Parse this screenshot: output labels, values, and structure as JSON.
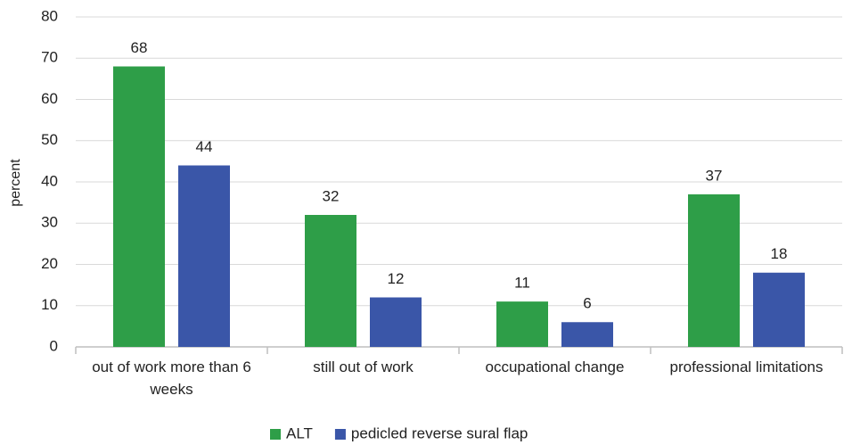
{
  "chart_data": {
    "type": "bar",
    "categories": [
      "out of work more than 6 weeks",
      "still out of work",
      "occupational change",
      "professional limitations"
    ],
    "series": [
      {
        "name": "ALT",
        "color": "#2e9e48",
        "values": [
          68,
          32,
          11,
          37
        ]
      },
      {
        "name": "pedicled reverse sural flap",
        "color": "#3a56a8",
        "values": [
          44,
          12,
          6,
          18
        ]
      }
    ],
    "y_label": "percent",
    "ylim": [
      0,
      80
    ],
    "yticks": [
      0,
      10,
      20,
      30,
      40,
      50,
      60,
      70,
      80
    ],
    "grid": true,
    "legend": "bottom"
  }
}
